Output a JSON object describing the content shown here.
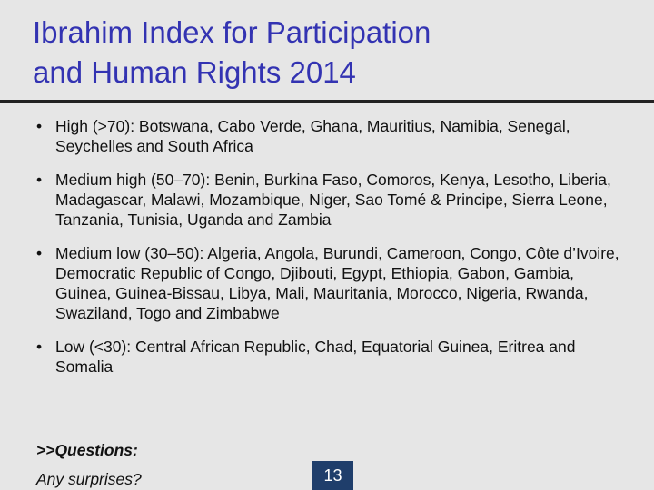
{
  "title": {
    "line1": "Ibrahim Index for Participation",
    "line2": "and Human Rights 2014"
  },
  "bullets": [
    {
      "text": "High (>70): Botswana, Cabo Verde, Ghana, Mauritius, Namibia, Senegal, Seychelles and South Africa"
    },
    {
      "text": "Medium high (50–70): Benin, Burkina Faso, Comoros, Kenya, Lesotho, Liberia, Madagascar, Malawi, Mozambique, Niger, Sao Tomé & Principe,  Sierra Leone, Tanzania, Tunisia, Uganda and Zambia"
    },
    {
      "text": "Medium low (30–50): Algeria, Angola, Burundi, Cameroon, Congo, Côte d’Ivoire, Democratic Republic of Congo, Djibouti, Egypt, Ethiopia, Gabon, Gambia, Guinea, Guinea-Bissau,  Libya, Mali, Mauritania, Morocco, Nigeria, Rwanda, Swaziland, Togo and Zimbabwe"
    },
    {
      "text": "Low (<30): Central African Republic, Chad, Equatorial Guinea, Eritrea and Somalia"
    }
  ],
  "questions": {
    "heading": ">>Questions:",
    "prompt": "Any surprises?"
  },
  "page_number": "13",
  "colors": {
    "background": "#e6e6e6",
    "title": "#3333b2",
    "rule": "#222222",
    "page_badge": "#1f3e6b"
  }
}
